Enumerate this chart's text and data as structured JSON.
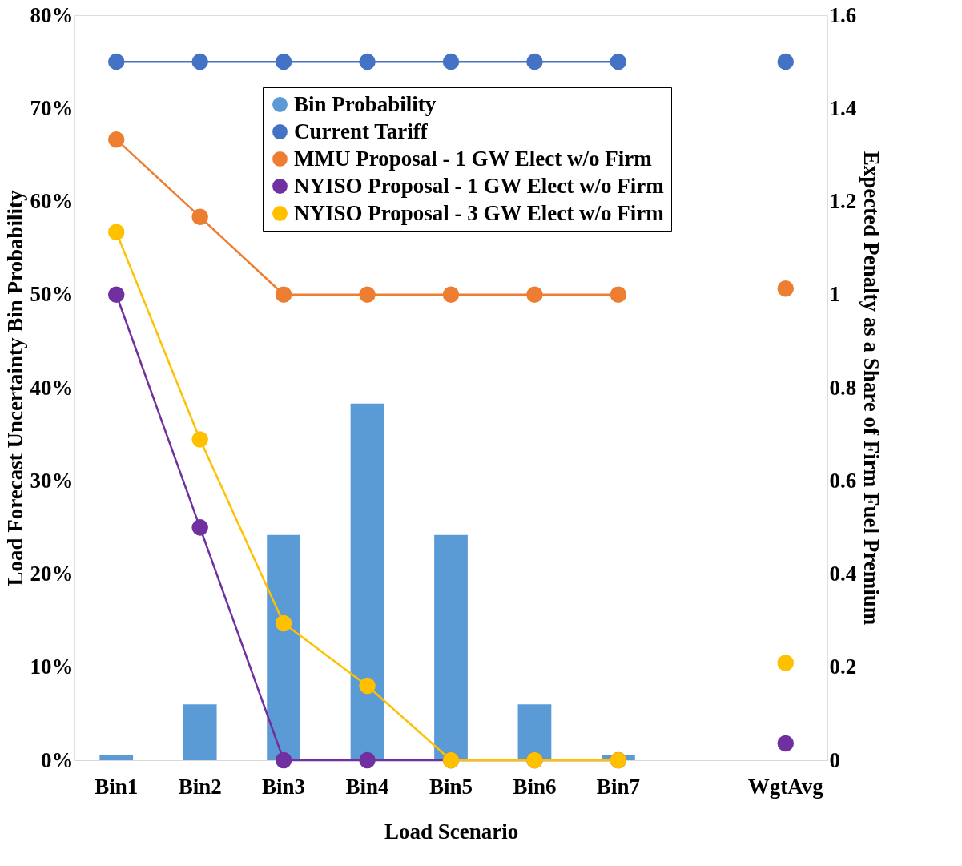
{
  "chart_data": {
    "type": "bar",
    "xlabel": "Load Scenario",
    "ylabel": "Load Forecast Uncertainty Bin Probability",
    "y2label": "Expected Penalty as a Share of Firm Fuel Premium",
    "categories": [
      "Bin1",
      "Bin2",
      "Bin3",
      "Bin4",
      "Bin5",
      "Bin6",
      "Bin7",
      null,
      "WgtAvg"
    ],
    "series": [
      {
        "name": "Bin Probability",
        "color": "#5b9bd5",
        "values": [
          0.6,
          6.0,
          24.2,
          38.3,
          24.2,
          6.0,
          0.6,
          null,
          null
        ]
      },
      {
        "name": "Current Tariff",
        "type": "line",
        "axis": "y2",
        "color": "#4472c4",
        "values": [
          1.5,
          1.5,
          1.5,
          1.5,
          1.5,
          1.5,
          1.5,
          null,
          1.5
        ]
      },
      {
        "name": "MMU Proposal - 1 GW Elect w/o Firm",
        "type": "line",
        "axis": "y2",
        "color": "#ed7d31",
        "values": [
          1.333,
          1.167,
          1.0,
          1.0,
          1.0,
          1.0,
          1.0,
          null,
          1.013
        ]
      },
      {
        "name": "NYISO Proposal - 1 GW Elect w/o Firm",
        "type": "line",
        "axis": "y2",
        "color": "#7030a0",
        "values": [
          1.0,
          0.5,
          0,
          0,
          0,
          0,
          0,
          null,
          0.036
        ]
      },
      {
        "name": "NYISO Proposal - 3 GW Elect w/o Firm",
        "type": "line",
        "axis": "y2",
        "color": "#ffc000",
        "values": [
          1.134,
          0.689,
          0.294,
          0.16,
          0,
          0,
          0,
          null,
          0.209
        ]
      }
    ],
    "ylim": [
      0,
      80
    ],
    "yticks": [
      {
        "value": 0,
        "label": "0%"
      },
      {
        "value": 10,
        "label": "10%"
      },
      {
        "value": 20,
        "label": "20%"
      },
      {
        "value": 30,
        "label": "30%"
      },
      {
        "value": 40,
        "label": "40%"
      },
      {
        "value": 50,
        "label": "50%"
      },
      {
        "value": 60,
        "label": "60%"
      },
      {
        "value": 70,
        "label": "70%"
      },
      {
        "value": 80,
        "label": "80%"
      }
    ],
    "y2lim": [
      0,
      1.6
    ],
    "y2ticks": [
      0,
      0.2,
      0.4,
      0.6,
      0.8,
      1,
      1.2,
      1.4,
      1.6
    ],
    "marker": "circle",
    "grid": false,
    "legend": "top"
  }
}
